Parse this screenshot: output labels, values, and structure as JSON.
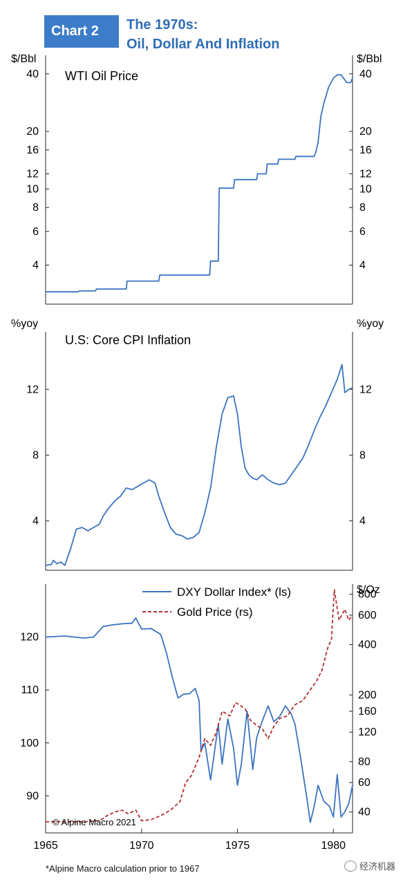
{
  "header": {
    "badge": "Chart 2",
    "title_line1": "The 1970s:",
    "title_line2": "Oil, Dollar And Inflation"
  },
  "footnote": "*Alpine Macro calculation prior to 1967",
  "credit": "© Alpine Macro 2021",
  "watermark": "经济机器",
  "colors": {
    "blue": "#3a73c0",
    "red": "#b03030",
    "badge": "#3d7cc9",
    "title": "#2f6db5"
  },
  "chart_data": [
    {
      "type": "line",
      "title": "WTI Oil Price",
      "ylabel_left": "$/Bbl",
      "ylabel_right": "$/Bbl",
      "yscale": "log",
      "ylim": [
        2.5,
        50
      ],
      "yticks": [
        4,
        6,
        8,
        10,
        12,
        16,
        20,
        40
      ],
      "series": [
        {
          "name": "WTI Oil Price",
          "color": "#3a73c0",
          "x": [
            1965.0,
            1966.7,
            1966.75,
            1967.6,
            1967.65,
            1969.2,
            1969.25,
            1970.9,
            1970.95,
            1973.55,
            1973.6,
            1974.0,
            1974.05,
            1974.8,
            1974.85,
            1976.0,
            1976.05,
            1976.5,
            1976.55,
            1977.1,
            1977.15,
            1978.0,
            1978.05,
            1979.0,
            1979.1,
            1979.2,
            1979.35,
            1979.5,
            1979.75,
            1980.0,
            1980.2,
            1980.4,
            1980.7,
            1980.9,
            1981.0
          ],
          "y": [
            2.9,
            2.9,
            2.93,
            2.93,
            3.0,
            3.0,
            3.3,
            3.3,
            3.55,
            3.55,
            4.2,
            4.2,
            10.1,
            10.1,
            11.2,
            11.2,
            12.0,
            12.0,
            13.5,
            13.5,
            14.3,
            14.3,
            14.8,
            14.8,
            15.8,
            17.5,
            24,
            28,
            34,
            38,
            39.5,
            39.5,
            36,
            36,
            38
          ]
        }
      ]
    },
    {
      "type": "line",
      "title": "U.S: Core CPI Inflation",
      "ylabel_left": "%yoy",
      "ylabel_right": "%yoy",
      "ylim": [
        1,
        15.5
      ],
      "yticks": [
        4,
        8,
        12
      ],
      "series": [
        {
          "name": "U.S: Core CPI Inflation",
          "color": "#3a73c0",
          "x": [
            1965.0,
            1965.3,
            1965.4,
            1965.6,
            1965.8,
            1966.0,
            1966.3,
            1966.6,
            1966.9,
            1967.2,
            1967.5,
            1967.8,
            1968.0,
            1968.3,
            1968.6,
            1968.9,
            1969.2,
            1969.5,
            1969.8,
            1970.1,
            1970.4,
            1970.7,
            1970.9,
            1971.2,
            1971.5,
            1971.8,
            1972.1,
            1972.4,
            1972.7,
            1973.0,
            1973.3,
            1973.6,
            1973.9,
            1974.2,
            1974.5,
            1974.8,
            1975.0,
            1975.2,
            1975.4,
            1975.6,
            1975.8,
            1976.0,
            1976.3,
            1976.6,
            1976.9,
            1977.2,
            1977.5,
            1977.8,
            1978.1,
            1978.4,
            1978.7,
            1979.0,
            1979.3,
            1979.6,
            1979.9,
            1980.2,
            1980.45,
            1980.6,
            1980.8,
            1981.0
          ],
          "y": [
            1.3,
            1.35,
            1.6,
            1.4,
            1.5,
            1.3,
            2.3,
            3.5,
            3.6,
            3.4,
            3.6,
            3.8,
            4.3,
            4.8,
            5.2,
            5.5,
            6.0,
            5.9,
            6.1,
            6.3,
            6.5,
            6.3,
            5.5,
            4.5,
            3.6,
            3.2,
            3.1,
            2.9,
            3.0,
            3.3,
            4.5,
            6.0,
            8.5,
            10.5,
            11.5,
            11.6,
            10.5,
            8.5,
            7.2,
            6.8,
            6.6,
            6.5,
            6.8,
            6.5,
            6.3,
            6.2,
            6.3,
            6.8,
            7.3,
            7.8,
            8.6,
            9.5,
            10.3,
            11.0,
            11.8,
            12.6,
            13.5,
            11.8,
            12.0,
            12.1
          ]
        }
      ]
    },
    {
      "type": "line",
      "ylabel_right": "$/Oz",
      "left_axis": {
        "scale": "linear",
        "ylim": [
          83,
          130
        ],
        "yticks": [
          90,
          100,
          110,
          120
        ]
      },
      "right_axis": {
        "scale": "log",
        "ylim": [
          30,
          920
        ],
        "yticks": [
          40,
          60,
          80,
          120,
          160,
          200,
          400,
          600,
          800
        ]
      },
      "xlim": [
        1965,
        1981
      ],
      "xticks": [
        1965,
        1970,
        1975,
        1980
      ],
      "legend": "top-right",
      "series": [
        {
          "name": "DXY Dollar Index* (ls)",
          "axis": "left",
          "color": "#3a73c0",
          "dash": "solid",
          "x": [
            1965.0,
            1966.0,
            1967.0,
            1967.5,
            1968.0,
            1968.5,
            1969.0,
            1969.5,
            1969.7,
            1970.0,
            1970.5,
            1971.0,
            1971.3,
            1971.6,
            1971.9,
            1972.2,
            1972.5,
            1972.8,
            1973.0,
            1973.1,
            1973.3,
            1973.6,
            1974.0,
            1974.2,
            1974.5,
            1974.8,
            1975.0,
            1975.2,
            1975.5,
            1975.8,
            1976.0,
            1976.3,
            1976.6,
            1976.9,
            1977.2,
            1977.5,
            1977.8,
            1978.0,
            1978.3,
            1978.6,
            1978.8,
            1979.0,
            1979.2,
            1979.5,
            1979.8,
            1980.0,
            1980.2,
            1980.4,
            1980.6,
            1980.8,
            1981.0
          ],
          "y": [
            120,
            120.2,
            119.8,
            120,
            122,
            122.3,
            122.5,
            122.6,
            123.6,
            121.5,
            121.6,
            120.5,
            117,
            112.5,
            108.5,
            109.2,
            109.3,
            110.3,
            108,
            98.5,
            100,
            93,
            103.5,
            96,
            104.5,
            99,
            92,
            96,
            106,
            95,
            101,
            104.2,
            107,
            104,
            105,
            107,
            105.5,
            103.5,
            97,
            90,
            85,
            88,
            92,
            89,
            88,
            86,
            94,
            86,
            87,
            88.5,
            92
          ]
        },
        {
          "name": "Gold Price (rs)",
          "axis": "right",
          "color": "#b03030",
          "dash": "dashed",
          "x": [
            1965.0,
            1966.0,
            1967.0,
            1967.8,
            1968.2,
            1968.6,
            1969.0,
            1969.3,
            1969.7,
            1970.0,
            1970.5,
            1971.0,
            1971.5,
            1972.0,
            1972.3,
            1972.6,
            1973.0,
            1973.3,
            1973.6,
            1973.9,
            1974.2,
            1974.6,
            1974.9,
            1975.1,
            1975.4,
            1975.7,
            1976.0,
            1976.3,
            1976.6,
            1976.9,
            1977.2,
            1977.6,
            1978.0,
            1978.4,
            1978.8,
            1979.1,
            1979.4,
            1979.7,
            1979.9,
            1980.05,
            1980.3,
            1980.6,
            1980.8,
            1981.0
          ],
          "y": [
            35,
            35,
            35,
            35.5,
            38,
            40,
            41,
            39,
            41,
            35.5,
            36,
            38,
            41,
            46,
            60,
            66,
            85,
            110,
            100,
            120,
            160,
            150,
            180,
            175,
            165,
            140,
            132,
            125,
            110,
            130,
            145,
            150,
            175,
            185,
            215,
            240,
            280,
            380,
            430,
            850,
            560,
            650,
            560,
            600
          ]
        }
      ]
    }
  ]
}
